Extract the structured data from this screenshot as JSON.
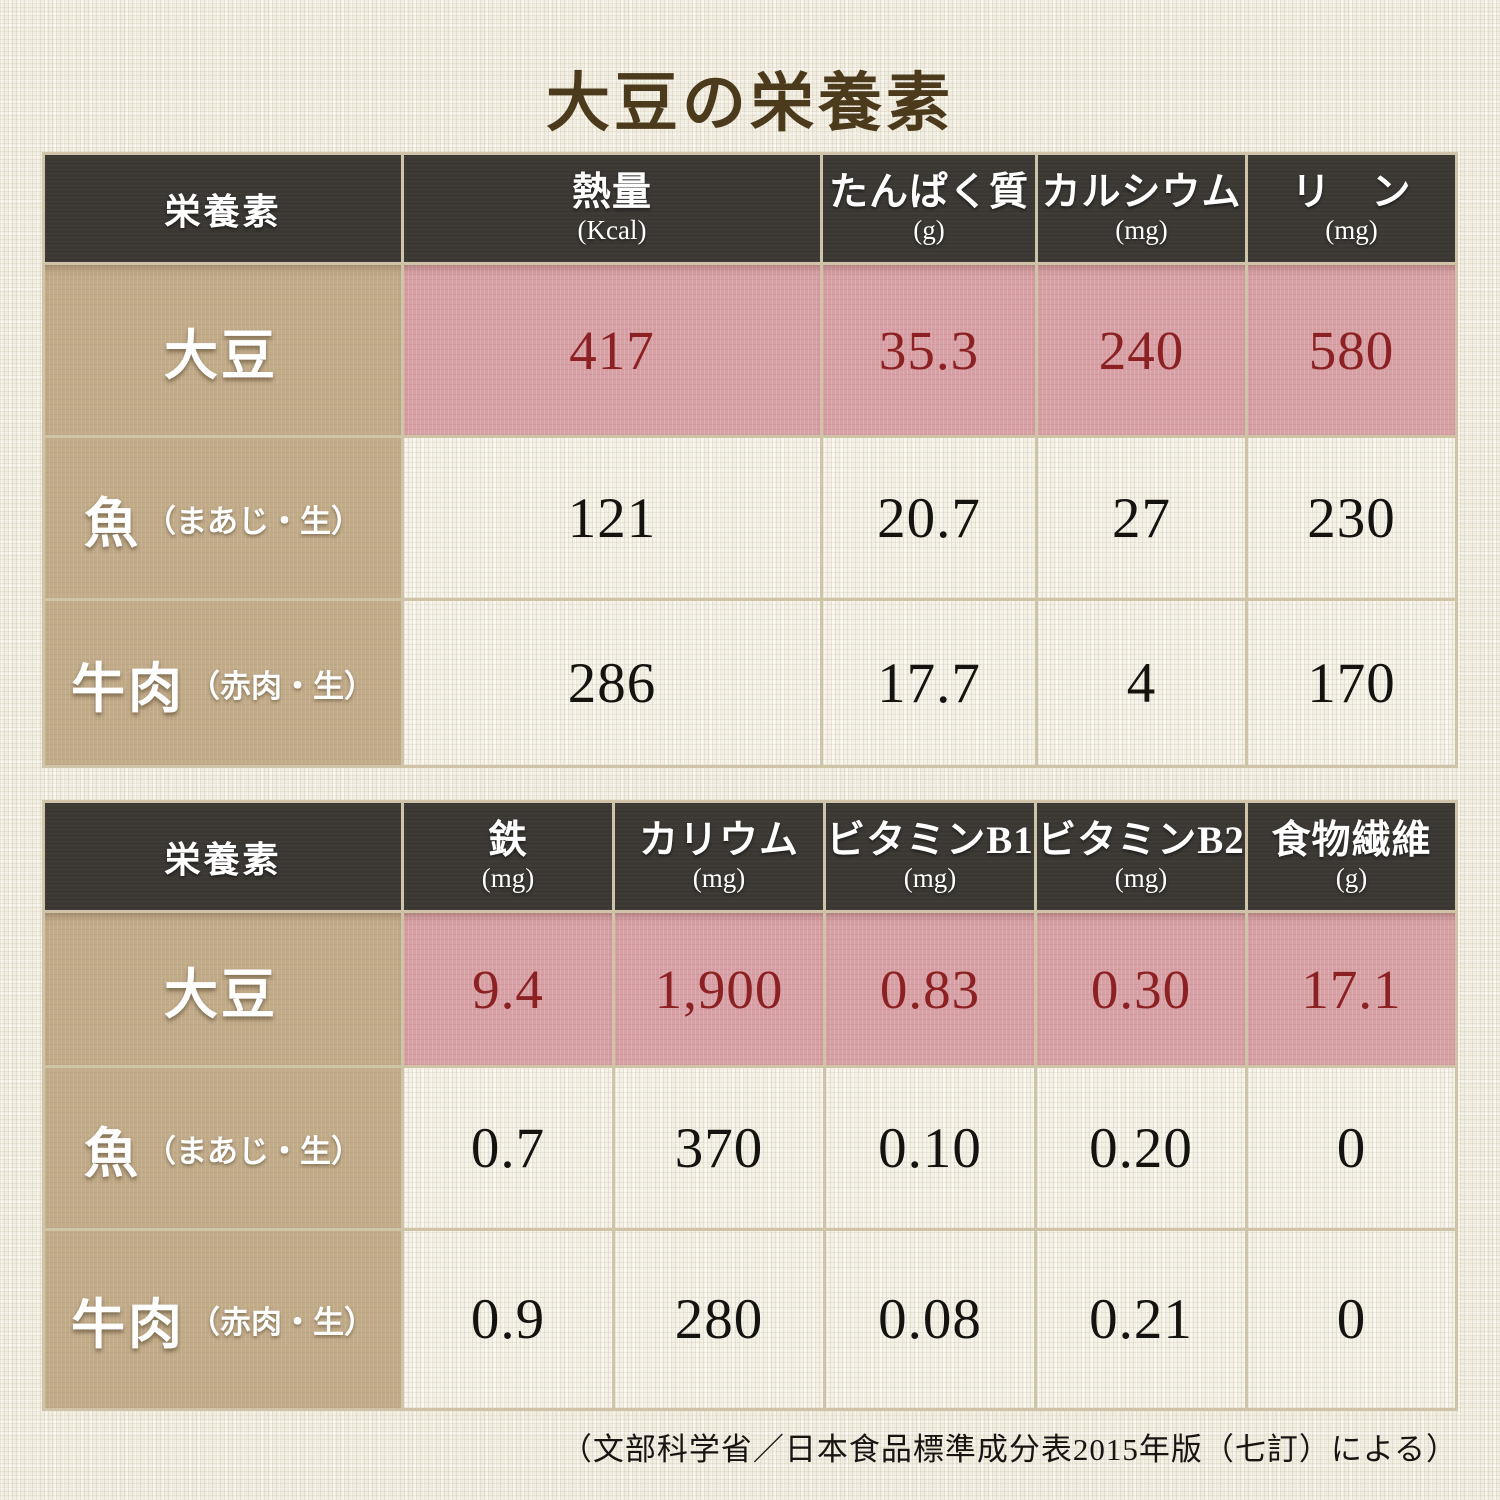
{
  "page": {
    "title": "大豆の栄養素",
    "footer": "（文部科学省／日本食品標準成分表2015年版（七訂）による）"
  },
  "colors": {
    "background": "#f1ede1",
    "header_cell": "#3b3834",
    "label_cell_tan": "#c2ab89",
    "highlight_pink": "#d7a0a4",
    "highlight_text_red": "#8c2124",
    "value_text_black": "#151310",
    "title_brown": "#4c3a1d",
    "grid_line": "#cfc3a8"
  },
  "table1": {
    "header": {
      "label": "栄養素",
      "cols": [
        {
          "name": "熱量",
          "unit": "(Kcal)"
        },
        {
          "name": "たんぱく質",
          "unit": "(g)"
        },
        {
          "name": "カルシウム",
          "unit": "(mg)"
        },
        {
          "name": "リ　ン",
          "unit": "(mg)"
        }
      ]
    },
    "rows": [
      {
        "label": "大豆",
        "label_sub": "",
        "values": [
          "417",
          "35.3",
          "240",
          "580"
        ],
        "highlight": true
      },
      {
        "label": "魚",
        "label_sub": "（まあじ・生）",
        "values": [
          "121",
          "20.7",
          "27",
          "230"
        ],
        "highlight": false
      },
      {
        "label": "牛肉",
        "label_sub": "（赤肉・生）",
        "values": [
          "286",
          "17.7",
          "4",
          "170"
        ],
        "highlight": false
      }
    ]
  },
  "table2": {
    "header": {
      "label": "栄養素",
      "cols": [
        {
          "name": "鉄",
          "unit": "(mg)"
        },
        {
          "name": "カリウム",
          "unit": "(mg)"
        },
        {
          "name": "ビタミンB1",
          "unit": "(mg)"
        },
        {
          "name": "ビタミンB2",
          "unit": "(mg)"
        },
        {
          "name": "食物繊維",
          "unit": "(g)"
        }
      ]
    },
    "rows": [
      {
        "label": "大豆",
        "label_sub": "",
        "values": [
          "9.4",
          "1,900",
          "0.83",
          "0.30",
          "17.1"
        ],
        "highlight": true
      },
      {
        "label": "魚",
        "label_sub": "（まあじ・生）",
        "values": [
          "0.7",
          "370",
          "0.10",
          "0.20",
          "0"
        ],
        "highlight": false
      },
      {
        "label": "牛肉",
        "label_sub": "（赤肉・生）",
        "values": [
          "0.9",
          "280",
          "0.08",
          "0.21",
          "0"
        ],
        "highlight": false
      }
    ]
  },
  "chart_data": [
    {
      "type": "table",
      "title": "大豆の栄養素",
      "columns": [
        "栄養素",
        "熱量 (Kcal)",
        "たんぱく質 (g)",
        "カルシウム (mg)",
        "リン (mg)"
      ],
      "rows": [
        [
          "大豆",
          417,
          35.3,
          240,
          580
        ],
        [
          "魚（まあじ・生）",
          121,
          20.7,
          27,
          230
        ],
        [
          "牛肉（赤肉・生）",
          286,
          17.7,
          4,
          170
        ]
      ],
      "highlighted_row": "大豆",
      "source": "（文部科学省／日本食品標準成分表2015年版（七訂）による）"
    },
    {
      "type": "table",
      "title": "大豆の栄養素",
      "columns": [
        "栄養素",
        "鉄 (mg)",
        "カリウム (mg)",
        "ビタミンB1 (mg)",
        "ビタミンB2 (mg)",
        "食物繊維 (g)"
      ],
      "rows": [
        [
          "大豆",
          9.4,
          1900,
          0.83,
          0.3,
          17.1
        ],
        [
          "魚（まあじ・生）",
          0.7,
          370,
          0.1,
          0.2,
          0
        ],
        [
          "牛肉（赤肉・生）",
          0.9,
          280,
          0.08,
          0.21,
          0
        ]
      ],
      "highlighted_row": "大豆",
      "source": "（文部科学省／日本食品標準成分表2015年版（七訂）による）"
    }
  ]
}
